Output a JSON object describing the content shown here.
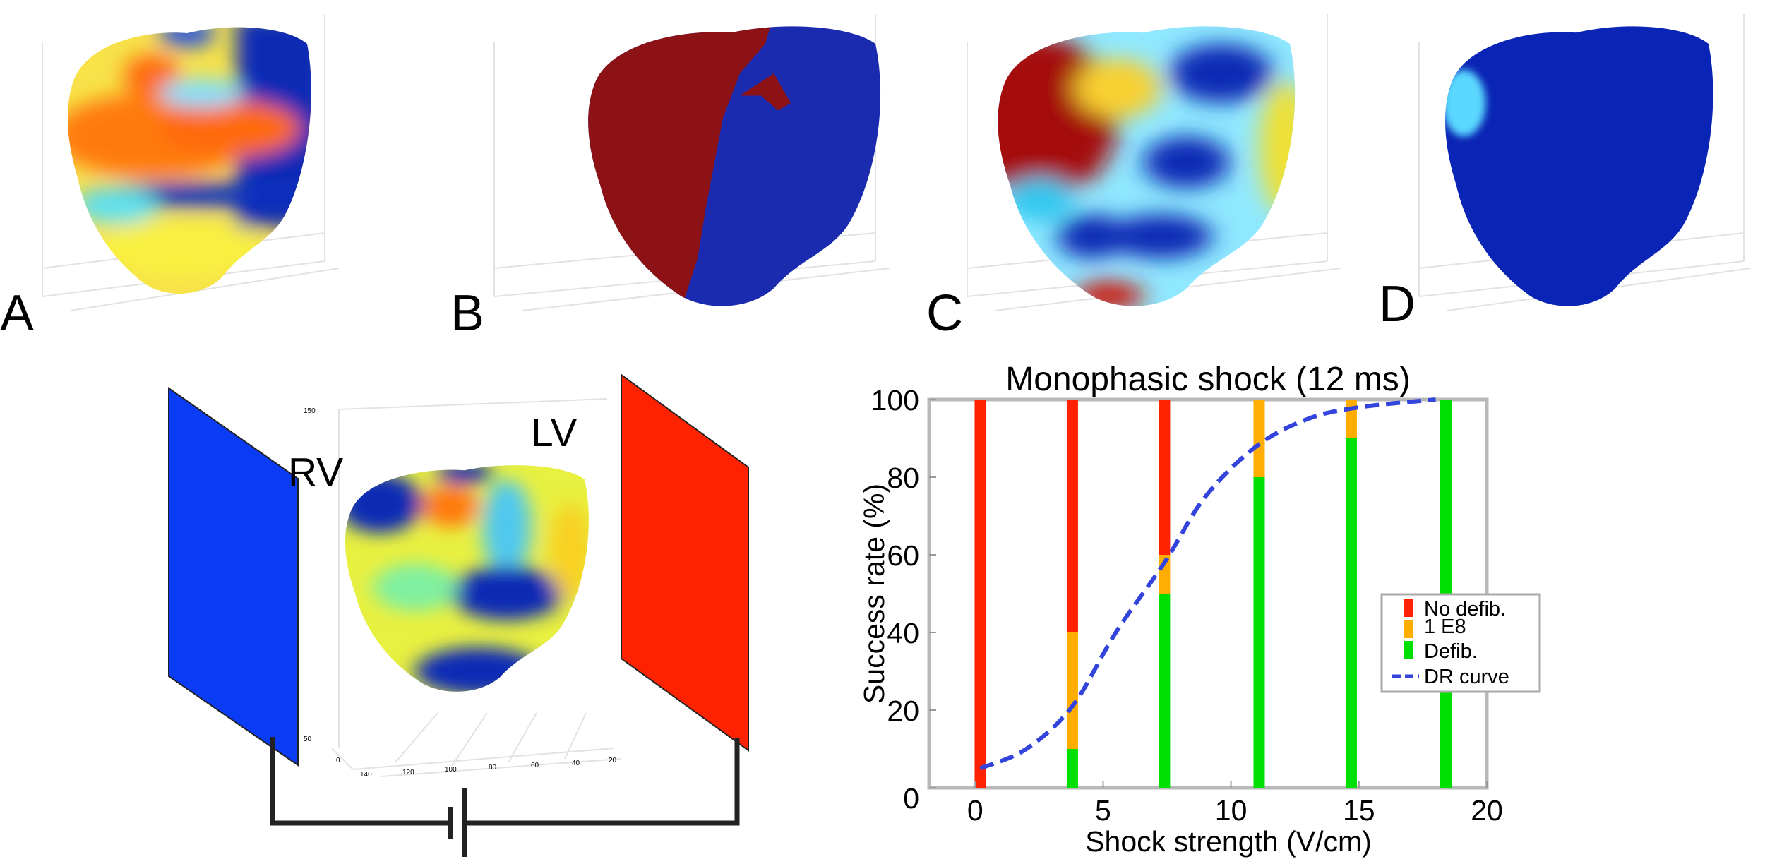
{
  "panels": {
    "a": {
      "label": "A"
    },
    "b": {
      "label": "B"
    },
    "c": {
      "label": "C"
    },
    "d": {
      "label": "D"
    }
  },
  "setup_diagram": {
    "rv_label": "RV",
    "lv_label": "LV",
    "electrode_left_color": "#0a3cf5",
    "electrode_right_color": "#ff2200",
    "axis_ticks_vertical": [
      "150",
      "50",
      "0"
    ],
    "axis_ticks_horizontal": [
      "140",
      "120",
      "100",
      "80",
      "60",
      "40",
      "20"
    ]
  },
  "colors": {
    "no_defib": "#ff2200",
    "e8": "#ffad00",
    "defib": "#00e000",
    "dr_curve": "#3344dd"
  },
  "chart_data": {
    "type": "bar",
    "stacked": true,
    "title": "Monophasic shock (12 ms)",
    "xlabel": "Shock strength (V/cm)",
    "ylabel": "Success rate (%)",
    "xlim": [
      -1.8,
      20
    ],
    "ylim": [
      0,
      100
    ],
    "xticks": [
      0,
      5,
      10,
      15,
      20
    ],
    "yticks": [
      0,
      20,
      40,
      60,
      80,
      100
    ],
    "grid": false,
    "legend_position": "right",
    "x": [
      0.2,
      3.8,
      7.4,
      11.1,
      14.7,
      18.4
    ],
    "series": [
      {
        "name": "No defib.",
        "color_key": "no_defib",
        "values": [
          100,
          60,
          40,
          0,
          0,
          0
        ]
      },
      {
        "name": "1 E8",
        "color_key": "e8",
        "values": [
          0,
          30,
          10,
          20,
          10,
          0
        ]
      },
      {
        "name": "Defib.",
        "color_key": "defib",
        "values": [
          0,
          10,
          50,
          80,
          90,
          100
        ]
      }
    ],
    "curve": {
      "name": "DR curve",
      "style": "dashed",
      "points": [
        [
          0.2,
          5
        ],
        [
          2,
          10
        ],
        [
          3.8,
          21
        ],
        [
          5.5,
          40
        ],
        [
          7.4,
          58
        ],
        [
          9,
          75
        ],
        [
          11,
          88
        ],
        [
          13,
          95
        ],
        [
          15,
          98
        ],
        [
          18,
          100
        ]
      ]
    }
  }
}
